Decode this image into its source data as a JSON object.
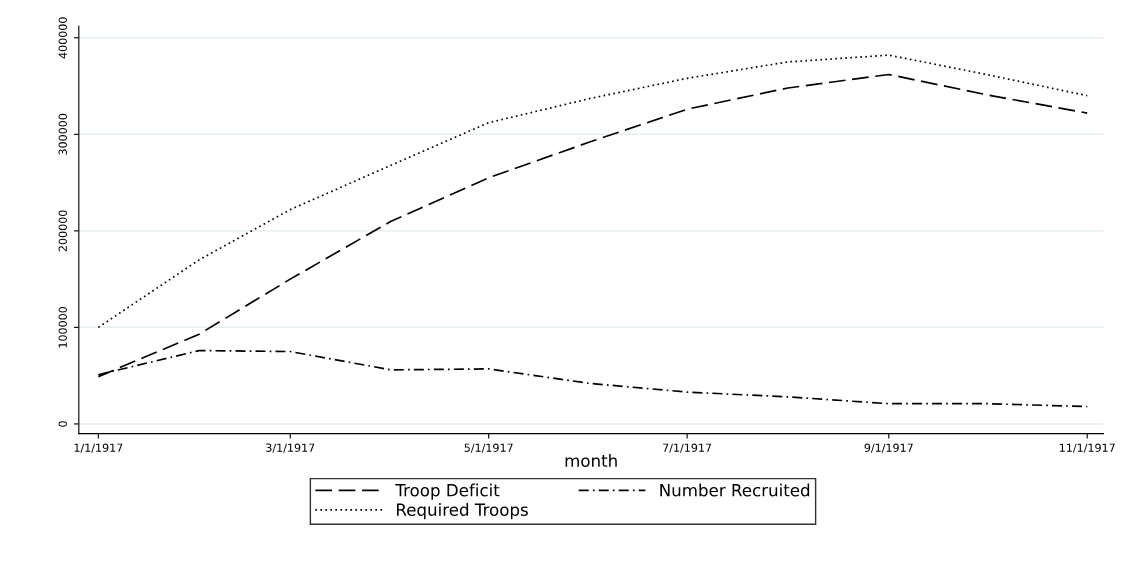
{
  "chart_data": {
    "type": "line",
    "xlabel": "month",
    "x": [
      "1917-01-01",
      "1917-02-01",
      "1917-03-01",
      "1917-04-01",
      "1917-05-01",
      "1917-06-01",
      "1917-07-01",
      "1917-08-01",
      "1917-09-01",
      "1917-10-01",
      "1917-11-01"
    ],
    "series": [
      {
        "name": "Troop Deficit",
        "color": "#000000",
        "line_style": "dashed",
        "values": [
          49000,
          93000,
          150000,
          210000,
          255000,
          292000,
          326000,
          348000,
          362000,
          341000,
          322000
        ]
      },
      {
        "name": "Number Recruited",
        "color": "#000000",
        "line_style": "dashdot",
        "values": [
          51000,
          76000,
          75000,
          56000,
          57000,
          42000,
          33000,
          28000,
          21000,
          21000,
          18000
        ]
      },
      {
        "name": "Required Troops",
        "color": "#000000",
        "line_style": "dotted",
        "values": [
          100000,
          170000,
          222000,
          268000,
          312000,
          337000,
          358000,
          375000,
          382000,
          362000,
          340000
        ]
      }
    ],
    "xlim": [
      "1916-12-26",
      "1917-11-06"
    ],
    "xticks": [
      {
        "value": "1917-01-01",
        "label": "1/1/1917"
      },
      {
        "value": "1917-03-01",
        "label": "3/1/1917"
      },
      {
        "value": "1917-05-01",
        "label": "5/1/1917"
      },
      {
        "value": "1917-07-01",
        "label": "7/1/1917"
      },
      {
        "value": "1917-09-01",
        "label": "9/1/1917"
      },
      {
        "value": "1917-11-01",
        "label": "11/1/1917"
      }
    ],
    "ylim": [
      -10000,
      412000
    ],
    "yticks": [
      0,
      100000,
      200000,
      300000,
      400000
    ],
    "grid": "y",
    "legend": "bottom",
    "marker": "none"
  }
}
